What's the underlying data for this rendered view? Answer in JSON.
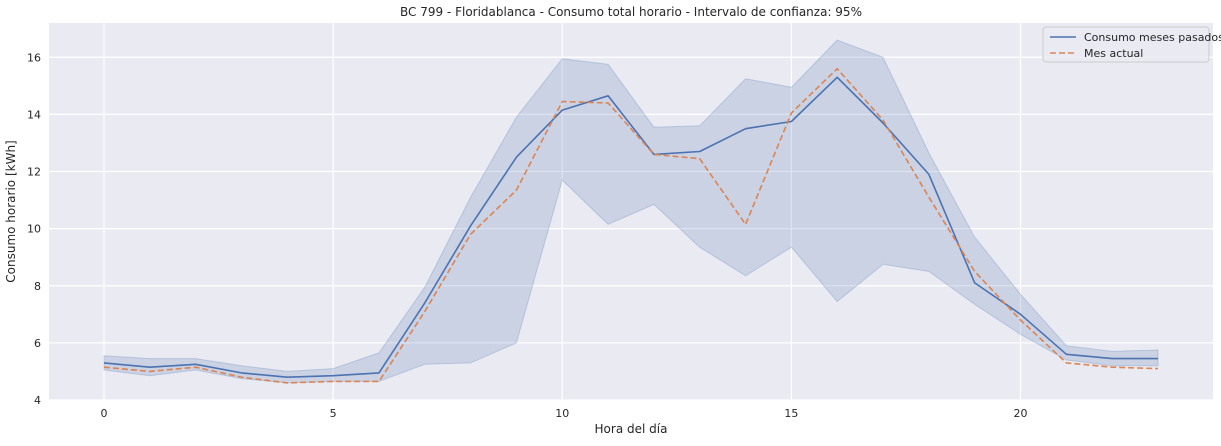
{
  "chart_data": {
    "type": "line",
    "title": "BC 799 - Floridablanca - Consumo total horario - Intervalo de confianza: 95%",
    "xlabel": "Hora del día",
    "ylabel": "Consumo horario [kWh]",
    "xlim": [
      -1.2,
      24.2
    ],
    "ylim": [
      4,
      17.2
    ],
    "xticks": [
      0,
      5,
      10,
      15,
      20
    ],
    "yticks": [
      4,
      6,
      8,
      10,
      12,
      14,
      16
    ],
    "grid": true,
    "legend_position": "top-right",
    "x": [
      0,
      1,
      2,
      3,
      4,
      5,
      6,
      7,
      8,
      9,
      10,
      11,
      12,
      13,
      14,
      15,
      16,
      17,
      18,
      19,
      20,
      21,
      22,
      23
    ],
    "series": [
      {
        "name": "Consumo meses pasados",
        "style": "solid",
        "color": "#4c72b0",
        "values": [
          5.3,
          5.15,
          5.25,
          4.95,
          4.8,
          4.85,
          4.95,
          7.4,
          10.1,
          12.5,
          14.15,
          14.65,
          12.6,
          12.7,
          13.5,
          13.75,
          15.3,
          13.7,
          11.9,
          8.1,
          7.0,
          5.6,
          5.45,
          5.45
        ],
        "ci_lower": [
          5.05,
          4.85,
          5.05,
          4.75,
          4.6,
          4.65,
          4.65,
          5.25,
          5.3,
          6.0,
          11.7,
          10.15,
          10.85,
          9.35,
          8.35,
          9.35,
          7.45,
          8.75,
          8.5,
          7.35,
          6.3,
          5.4,
          5.2,
          5.2
        ],
        "ci_upper": [
          5.55,
          5.45,
          5.45,
          5.2,
          5.0,
          5.1,
          5.65,
          7.95,
          11.1,
          13.9,
          15.95,
          15.75,
          13.55,
          13.6,
          15.25,
          14.95,
          16.6,
          16.0,
          12.65,
          9.7,
          7.7,
          5.9,
          5.7,
          5.75
        ]
      },
      {
        "name": "Mes actual",
        "style": "dashed",
        "color": "#dd8452",
        "values": [
          5.15,
          5.0,
          5.15,
          4.8,
          4.6,
          4.65,
          4.65,
          7.1,
          9.8,
          11.35,
          14.45,
          14.4,
          12.6,
          12.45,
          10.15,
          14.05,
          15.6,
          13.8,
          11.1,
          8.5,
          6.8,
          5.3,
          5.15,
          5.1
        ]
      }
    ],
    "colors": {
      "plot_background": "#eaeaf2",
      "grid": "#ffffff",
      "ci_band": "#4c72b0"
    }
  }
}
